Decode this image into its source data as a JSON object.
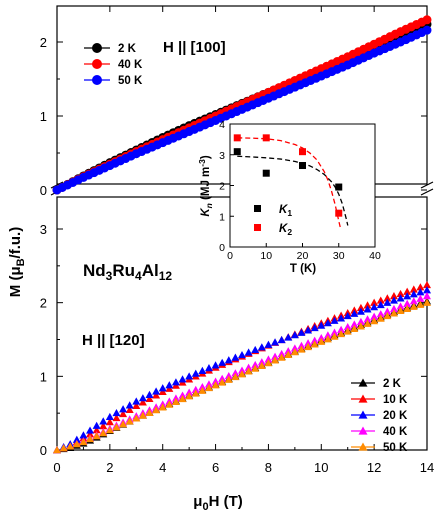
{
  "chart_data": [
    {
      "panel": "top",
      "type": "scatter",
      "annotation": "H || [100]",
      "x_range": [
        0,
        14
      ],
      "ylim": [
        -0.2,
        2.45
      ],
      "y_ticks": [
        "0",
        "1",
        "2"
      ],
      "series": [
        {
          "name": "2 K",
          "color": "#000000",
          "marker": "circle",
          "x": [
            0,
            1,
            2,
            3,
            4,
            5,
            6,
            7,
            8,
            9,
            10,
            11,
            12,
            13,
            14
          ],
          "y": [
            0,
            0.19,
            0.37,
            0.54,
            0.71,
            0.87,
            1.02,
            1.17,
            1.32,
            1.47,
            1.62,
            1.77,
            1.93,
            2.08,
            2.24
          ]
        },
        {
          "name": "40 K",
          "color": "#ff0000",
          "marker": "circle",
          "x": [
            0,
            1,
            2,
            3,
            4,
            5,
            6,
            7,
            8,
            9,
            10,
            11,
            12,
            13,
            14
          ],
          "y": [
            0,
            0.18,
            0.35,
            0.52,
            0.68,
            0.84,
            1.0,
            1.16,
            1.32,
            1.48,
            1.64,
            1.8,
            1.97,
            2.14,
            2.3
          ]
        },
        {
          "name": "50 K",
          "color": "#0000ff",
          "marker": "circle",
          "x": [
            0,
            1,
            2,
            3,
            4,
            5,
            6,
            7,
            8,
            9,
            10,
            11,
            12,
            13,
            14
          ],
          "y": [
            0,
            0.17,
            0.33,
            0.49,
            0.64,
            0.79,
            0.94,
            1.09,
            1.24,
            1.39,
            1.54,
            1.69,
            1.85,
            2.0,
            2.16
          ]
        }
      ]
    },
    {
      "panel": "bottom",
      "type": "scatter",
      "annotation": "H || [120]",
      "compound": [
        "Nd",
        "3",
        "Ru",
        "4",
        "Al",
        "12"
      ],
      "xlabel": [
        "μ",
        "0",
        "H (T)"
      ],
      "ylabel": [
        "M (μ",
        "B",
        "/f.u.)"
      ],
      "x_range": [
        0,
        14
      ],
      "ylim": [
        0,
        3.1
      ],
      "x_ticks": [
        "0",
        "2",
        "4",
        "6",
        "8",
        "10",
        "12",
        "14"
      ],
      "y_ticks": [
        "0",
        "1",
        "2",
        "3"
      ],
      "series": [
        {
          "name": "2 K",
          "color": "#000000",
          "marker": "triangle",
          "x": [
            0,
            0.5,
            1,
            1.5,
            2,
            3,
            4,
            5,
            6,
            7,
            8,
            9,
            10,
            11,
            12,
            13,
            14
          ],
          "y": [
            0,
            0.03,
            0.09,
            0.17,
            0.26,
            0.43,
            0.59,
            0.74,
            0.89,
            1.04,
            1.19,
            1.34,
            1.49,
            1.63,
            1.77,
            1.91,
            2.02
          ]
        },
        {
          "name": "10 K",
          "color": "#ff0000",
          "marker": "triangle",
          "x": [
            0,
            0.5,
            1,
            1.5,
            2,
            3,
            4,
            5,
            6,
            7,
            8,
            9,
            10,
            11,
            12,
            13,
            14
          ],
          "y": [
            0,
            0.06,
            0.16,
            0.27,
            0.38,
            0.6,
            0.79,
            0.96,
            1.12,
            1.27,
            1.42,
            1.57,
            1.72,
            1.86,
            2.0,
            2.12,
            2.24
          ]
        },
        {
          "name": "20 K",
          "color": "#0000ff",
          "marker": "triangle",
          "x": [
            0,
            0.5,
            1,
            1.5,
            2,
            3,
            4,
            5,
            6,
            7,
            8,
            9,
            10,
            11,
            12,
            13,
            14
          ],
          "y": [
            0,
            0.08,
            0.2,
            0.33,
            0.45,
            0.66,
            0.84,
            1.0,
            1.15,
            1.29,
            1.43,
            1.56,
            1.69,
            1.82,
            1.94,
            2.06,
            2.17
          ]
        },
        {
          "name": "40 K",
          "color": "#ff00ff",
          "marker": "triangle",
          "x": [
            0,
            0.5,
            1,
            1.5,
            2,
            3,
            4,
            5,
            6,
            7,
            8,
            9,
            10,
            11,
            12,
            13,
            14
          ],
          "y": [
            0,
            0.05,
            0.12,
            0.2,
            0.29,
            0.46,
            0.62,
            0.78,
            0.93,
            1.08,
            1.23,
            1.38,
            1.52,
            1.67,
            1.81,
            1.95,
            2.09
          ]
        },
        {
          "name": "50 K",
          "color": "#ff8c00",
          "marker": "triangle",
          "x": [
            0,
            0.5,
            1,
            1.5,
            2,
            3,
            4,
            5,
            6,
            7,
            8,
            9,
            10,
            11,
            12,
            13,
            14
          ],
          "y": [
            0,
            0.05,
            0.11,
            0.19,
            0.27,
            0.43,
            0.58,
            0.73,
            0.88,
            1.03,
            1.18,
            1.33,
            1.47,
            1.61,
            1.75,
            1.89,
            2.0
          ]
        }
      ]
    },
    {
      "panel": "inset",
      "type": "scatter",
      "xlabel": "T (K)",
      "ylabel": [
        "K",
        "n",
        " (MJ m",
        "-3",
        ")"
      ],
      "xlim": [
        0,
        40
      ],
      "ylim": [
        0,
        4
      ],
      "x_ticks": [
        "0",
        "10",
        "20",
        "30",
        "40"
      ],
      "y_ticks": [
        "0",
        "1",
        "2",
        "3",
        "4"
      ],
      "series": [
        {
          "name": "K1",
          "label": [
            "K",
            "1"
          ],
          "color": "#000000",
          "marker": "square",
          "x": [
            2,
            10,
            20,
            30
          ],
          "y": [
            3.1,
            2.4,
            2.65,
            1.95
          ]
        },
        {
          "name": "K2",
          "label": [
            "K",
            "2"
          ],
          "color": "#ff0000",
          "marker": "square",
          "x": [
            2,
            10,
            20,
            30
          ],
          "y": [
            3.55,
            3.55,
            3.1,
            1.1
          ]
        }
      ],
      "fits": [
        {
          "color": "#000000",
          "dashed": true,
          "x": [
            2,
            6,
            10,
            14,
            18,
            22,
            24,
            26,
            28,
            29,
            30,
            31,
            32,
            32.5
          ],
          "y": [
            2.95,
            2.93,
            2.9,
            2.86,
            2.78,
            2.64,
            2.52,
            2.36,
            2.12,
            1.95,
            1.72,
            1.4,
            0.95,
            0.7
          ]
        },
        {
          "name": "fit-K2",
          "color": "#ff0000",
          "dashed": true,
          "x": [
            2,
            6,
            10,
            14,
            18,
            20,
            22,
            24,
            26,
            27,
            28,
            29,
            30,
            30.5
          ],
          "y": [
            3.55,
            3.54,
            3.52,
            3.46,
            3.33,
            3.22,
            3.06,
            2.83,
            2.45,
            2.18,
            1.82,
            1.38,
            0.85,
            0.6
          ]
        }
      ]
    }
  ]
}
